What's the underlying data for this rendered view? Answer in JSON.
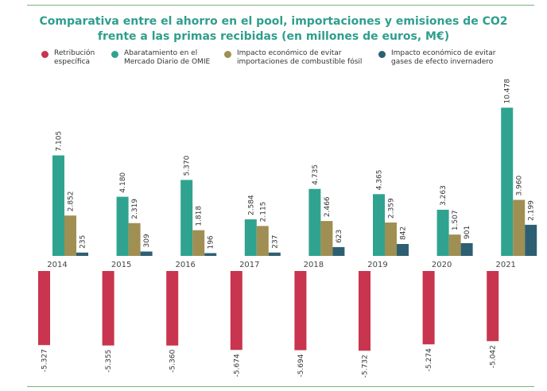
{
  "chart_data": {
    "type": "bar",
    "title_lines": [
      "Comparativa entre el ahorro en el pool, importaciones y emisiones de CO2",
      "frente a las primas recibidas (en millones de euros, M€)"
    ],
    "legend_placement": "top",
    "categories": [
      "2014",
      "2015",
      "2016",
      "2017",
      "2018",
      "2019",
      "2020",
      "2021"
    ],
    "ylim": [
      -6000,
      11000
    ],
    "grid": false,
    "series": [
      {
        "name_lines": [
          "Retribución",
          "específica"
        ],
        "color": "#c9344e",
        "values": [
          -5327,
          -5355,
          -5360,
          -5674,
          -5694,
          -5732,
          -5274,
          -5042
        ],
        "labels": [
          "-5.327",
          "-5.355",
          "-5.360",
          "-5.674",
          "-5.694",
          "-5.732",
          "-5.274",
          "-5.042"
        ]
      },
      {
        "name_lines": [
          "Abaratamiento en el",
          "Mercado Diario de OMIE"
        ],
        "color": "#2fa390",
        "values": [
          7105,
          4180,
          5370,
          2584,
          4735,
          4365,
          3263,
          10478
        ],
        "labels": [
          "7.105",
          "4.180",
          "5.370",
          "2.584",
          "4.735",
          "4.365",
          "3.263",
          "10.478"
        ]
      },
      {
        "name_lines": [
          "Impacto económico de evitar",
          "importaciones de combustible fósil"
        ],
        "color": "#a08f52",
        "values": [
          2852,
          2319,
          1818,
          2115,
          2466,
          2359,
          1507,
          3960
        ],
        "labels": [
          "2.852",
          "2.319",
          "1.818",
          "2.115",
          "2.466",
          "2.359",
          "1.507",
          "3.960"
        ]
      },
      {
        "name_lines": [
          "Impacto económico de evitar",
          "gases de efecto invernadero"
        ],
        "color": "#2d5f72",
        "values": [
          235,
          309,
          196,
          237,
          623,
          842,
          901,
          2199
        ],
        "labels": [
          "235",
          "309",
          "196",
          "237",
          "623",
          "842",
          "901",
          "2.199"
        ]
      }
    ]
  }
}
